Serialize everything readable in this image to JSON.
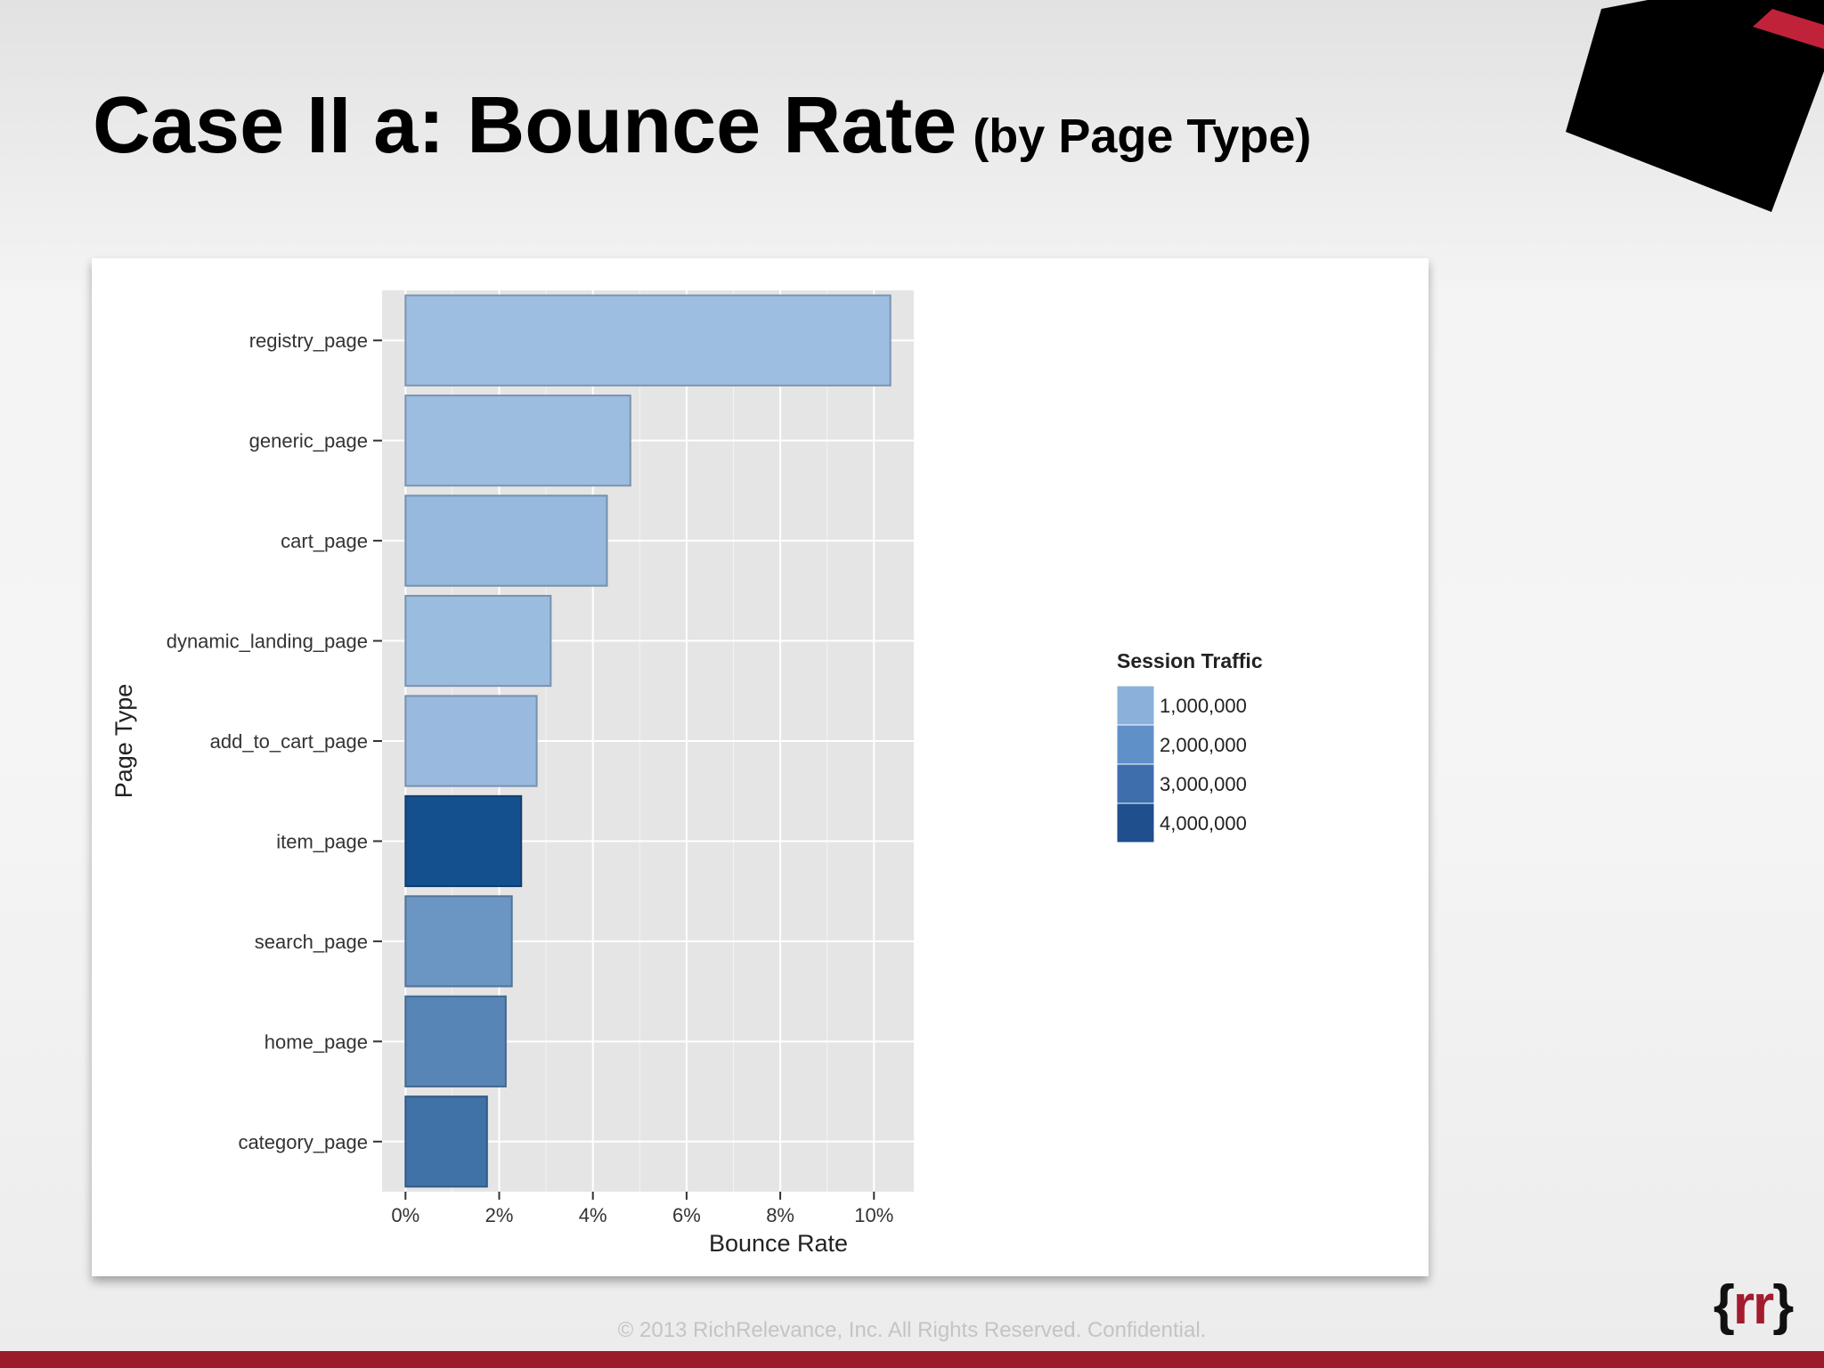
{
  "slide": {
    "title": "Case II a:  Bounce Rate",
    "subtitle": "(by Page Type)",
    "footer": "© 2013 RichRelevance, Inc. All Rights Reserved. Confidential.",
    "logo_text": "{rr}"
  },
  "colors": {
    "title": "#000000",
    "accent_red": "#9b1b2a",
    "panel_bg": "#e5e5e5",
    "grid": "#ffffff"
  },
  "chart_data": {
    "type": "bar",
    "orientation": "horizontal",
    "categories": [
      "registry_page",
      "generic_page",
      "cart_page",
      "dynamic_landing_page",
      "add_to_cart_page",
      "item_page",
      "search_page",
      "home_page",
      "category_page"
    ],
    "values": [
      10.35,
      4.8,
      4.3,
      3.1,
      2.8,
      2.47,
      2.27,
      2.14,
      1.74
    ],
    "fill_values": [
      250000,
      300000,
      450000,
      350000,
      400000,
      4400000,
      1800000,
      2400000,
      3100000
    ],
    "xlabel": "Bounce Rate",
    "ylabel": "Page Type",
    "xlim": [
      -0.5,
      10.85
    ],
    "x_ticks": [
      0,
      2,
      4,
      6,
      8,
      10
    ],
    "x_tick_labels": [
      "0%",
      "2%",
      "4%",
      "6%",
      "8%",
      "10%"
    ],
    "grid": true,
    "legend": {
      "title": "Session Traffic",
      "position": "right",
      "values": [
        1000000,
        2000000,
        3000000,
        4000000
      ],
      "labels": [
        "1,000,000",
        "2,000,000",
        "3,000,000",
        "4,000,000"
      ],
      "colors": [
        "#8bb1db",
        "#5f91c8",
        "#3f6ead",
        "#1f4f8c"
      ]
    },
    "color_scale": {
      "low_value": 0,
      "high_value": 4500000,
      "low_color": "#a6c5e6",
      "high_color": "#124d8c"
    }
  }
}
